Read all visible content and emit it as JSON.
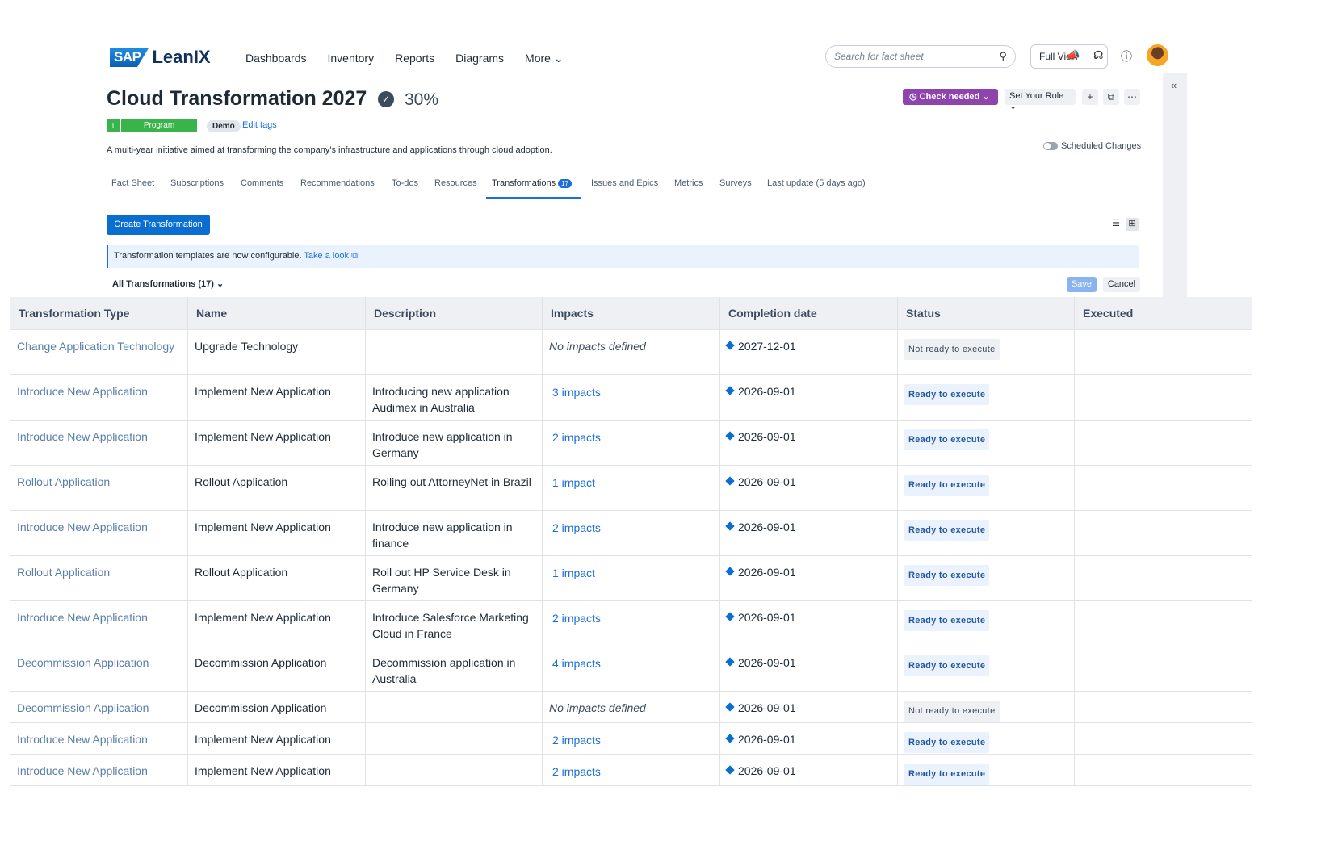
{
  "brand": {
    "sap": "SAP",
    "lean": "LeanIX"
  },
  "nav": [
    "Dashboards",
    "Inventory",
    "Reports",
    "Diagrams",
    "More"
  ],
  "search": {
    "placeholder": "Search for fact sheet"
  },
  "view_select": "Full View",
  "header": {
    "title": "Cloud Transformation 2027",
    "completion": "30%",
    "tag_level": "I",
    "tag_type": "Program",
    "tag_demo": "Demo",
    "edit_tags": "Edit tags",
    "description": "A multi-year initiative aimed at transforming the company's infrastructure and applications through cloud adoption.",
    "check_needed": "Check needed",
    "set_role": "Set Your Role",
    "scheduled_changes": "Scheduled Changes"
  },
  "tabs": [
    "Fact Sheet",
    "Subscriptions",
    "Comments",
    "Recommendations",
    "To-dos",
    "Resources",
    "Transformations",
    "Issues and Epics",
    "Metrics",
    "Surveys",
    "Last update (5 days ago)"
  ],
  "transformations_count": "17",
  "create_button": "Create Transformation",
  "banner": {
    "text": "Transformation templates are now configurable.",
    "link": "Take a look"
  },
  "filter": "All Transformations (17)",
  "save": "Save",
  "cancel": "Cancel",
  "table": {
    "headers": [
      "Transformation Type",
      "Name",
      "Description",
      "Impacts",
      "Completion date",
      "Status",
      "Executed"
    ],
    "rows": [
      {
        "type": "Change Application Technology",
        "name": "Upgrade Technology",
        "desc": "",
        "impacts": "No impacts defined",
        "date": "2027-12-01",
        "status": "Not ready to execute"
      },
      {
        "type": "Introduce New Application",
        "name": "Implement New Application",
        "desc": "Introducing new application Audimex in Australia",
        "impacts": "3 impacts",
        "date": "2026-09-01",
        "status": "Ready to execute"
      },
      {
        "type": "Introduce New Application",
        "name": "Implement New Application",
        "desc": "Introduce new application in Germany",
        "impacts": "2 impacts",
        "date": "2026-09-01",
        "status": "Ready to execute"
      },
      {
        "type": "Rollout Application",
        "name": "Rollout Application",
        "desc": "Rolling out AttorneyNet in Brazil",
        "impacts": "1 impact",
        "date": "2026-09-01",
        "status": "Ready to execute"
      },
      {
        "type": "Introduce New Application",
        "name": "Implement New Application",
        "desc": "Introduce new application in finance",
        "impacts": "2 impacts",
        "date": "2026-09-01",
        "status": "Ready to execute"
      },
      {
        "type": "Rollout Application",
        "name": "Rollout Application",
        "desc": "Roll out HP Service Desk in Germany",
        "impacts": "1 impact",
        "date": "2026-09-01",
        "status": "Ready to execute"
      },
      {
        "type": "Introduce New Application",
        "name": "Implement New Application",
        "desc": "Introduce Salesforce Marketing Cloud in France",
        "impacts": "2 impacts",
        "date": "2026-09-01",
        "status": "Ready to execute"
      },
      {
        "type": "Decommission Application",
        "name": "Decommission Application",
        "desc": "Decommission application in Australia",
        "impacts": "4 impacts",
        "date": "2026-09-01",
        "status": "Ready to execute"
      },
      {
        "type": "Decommission Application",
        "name": "Decommission Application",
        "desc": "",
        "impacts": "No impacts defined",
        "date": "2026-09-01",
        "status": "Not ready to execute"
      },
      {
        "type": "Introduce New Application",
        "name": "Implement New Application",
        "desc": "",
        "impacts": "2 impacts",
        "date": "2026-09-01",
        "status": "Ready to execute"
      },
      {
        "type": "Introduce New Application",
        "name": "Implement New Application",
        "desc": "",
        "impacts": "2 impacts",
        "date": "2026-09-01",
        "status": "Ready to execute"
      }
    ]
  }
}
